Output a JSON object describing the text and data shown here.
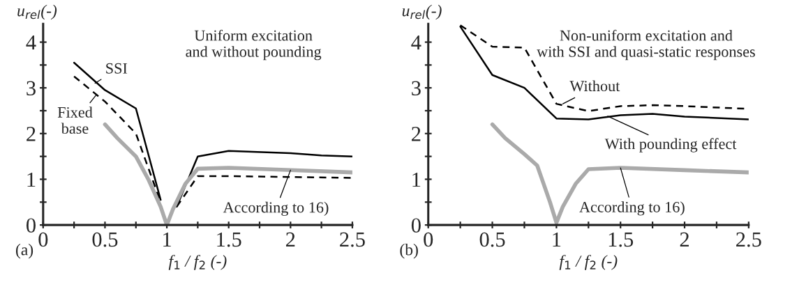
{
  "chart_data": [
    {
      "type": "line",
      "title": "Uniform excitation\nand without pounding",
      "xlabel": "f$_{1}$ / f$_{2}$ (-)",
      "ylabel": "u$_{rel}$(-)",
      "x": [
        0.25,
        0.5,
        0.6,
        0.75,
        0.85,
        0.95,
        1.0,
        1.05,
        1.08,
        1.15,
        1.25,
        1.5,
        2.0,
        2.25,
        2.5
      ],
      "series": [
        {
          "color": "#000000",
          "line_style": "solid",
          "values": [
            3.55,
            2.95,
            null,
            2.55,
            null,
            0.55,
            null,
            null,
            0.4,
            null,
            1.5,
            1.62,
            1.57,
            1.52,
            1.5
          ]
        },
        {
          "color": "#000000",
          "line_style": "dashed",
          "values": [
            3.25,
            2.7,
            null,
            2.0,
            null,
            0.5,
            null,
            null,
            0.4,
            null,
            1.07,
            1.07,
            1.05,
            null,
            1.03
          ]
        },
        {
          "color": "#aaaaaa",
          "line_style": "solid",
          "values": [
            null,
            2.2,
            1.9,
            1.5,
            1.0,
            0.4,
            0.0,
            0.35,
            null,
            0.9,
            1.23,
            1.25,
            1.2,
            null,
            1.15
          ]
        }
      ],
      "xlim": [
        0,
        2.5
      ],
      "xticks": [
        0,
        {
          "value": 0.25,
          "label": null
        },
        0.5,
        {
          "value": 0.75,
          "label": null
        },
        1,
        {
          "value": 1.25,
          "label": null
        },
        1.5,
        {
          "value": 1.75,
          "label": null
        },
        2,
        {
          "value": 2.25,
          "label": null
        },
        2.5
      ],
      "ylim": [
        0,
        4.4
      ],
      "yticks": [
        0,
        {
          "value": 0.5,
          "label": null
        },
        1,
        {
          "value": 1.5,
          "label": null
        },
        2,
        {
          "value": 2.5,
          "label": null
        },
        3,
        {
          "value": 3.5,
          "label": null
        },
        4
      ],
      "grid": false,
      "legend": false,
      "annotations": [
        {
          "text": "SSI",
          "x": 0.42,
          "y": 3.1
        },
        {
          "text": "Fixed\nbase",
          "x": 0.43,
          "y": 2.85
        },
        {
          "text": "According to 16)",
          "x": 2.0,
          "y": 1.2
        },
        "(a)"
      ]
    },
    {
      "type": "line",
      "title": "Non-uniform excitation and\nwith SSI and quasi-static responses",
      "xlabel": "f$_{1}$ / f$_{2}$ (-)",
      "ylabel": "u$_{rel}$(-)",
      "x": [
        0.25,
        0.5,
        0.6,
        0.64,
        0.75,
        0.85,
        0.95,
        1.0,
        1.05,
        1.15,
        1.25,
        1.5,
        1.75,
        2.0,
        2.5
      ],
      "series": [
        {
          "color": "#000000",
          "line_style": "solid",
          "values": [
            4.34,
            3.28,
            null,
            null,
            3.0,
            null,
            null,
            2.33,
            null,
            null,
            2.31,
            2.4,
            2.43,
            2.37,
            2.31
          ]
        },
        {
          "color": "#000000",
          "line_style": "dashed",
          "values": [
            4.37,
            3.9,
            null,
            3.89,
            3.88,
            null,
            null,
            2.65,
            null,
            null,
            2.49,
            2.6,
            2.62,
            2.6,
            2.54
          ]
        },
        {
          "color": "#aaaaaa",
          "line_style": "solid",
          "values": [
            null,
            2.2,
            1.9,
            null,
            1.55,
            1.3,
            0.5,
            0.05,
            0.4,
            0.9,
            1.22,
            1.25,
            null,
            1.2,
            1.15
          ]
        }
      ],
      "xlim": [
        0,
        2.5
      ],
      "xticks": [
        0,
        {
          "value": 0.25,
          "label": null
        },
        0.5,
        {
          "value": 0.75,
          "label": null
        },
        1,
        {
          "value": 1.25,
          "label": null
        },
        1.5,
        {
          "value": 1.75,
          "label": null
        },
        2,
        {
          "value": 2.25,
          "label": null
        },
        2.5
      ],
      "ylim": [
        0,
        4.4
      ],
      "yticks": [
        0,
        {
          "value": 0.5,
          "label": null
        },
        1,
        {
          "value": 1.5,
          "label": null
        },
        2,
        {
          "value": 2.5,
          "label": null
        },
        3,
        {
          "value": 3.5,
          "label": null
        },
        4
      ],
      "grid": false,
      "legend": false,
      "annotations": [
        {
          "text": "Without",
          "x": 1.05,
          "y": 2.65
        },
        {
          "text": "With pounding effect",
          "x": 1.4,
          "y": 2.38
        },
        {
          "text": "According to 16)",
          "x": 1.5,
          "y": 1.25
        },
        "(b)"
      ]
    }
  ]
}
